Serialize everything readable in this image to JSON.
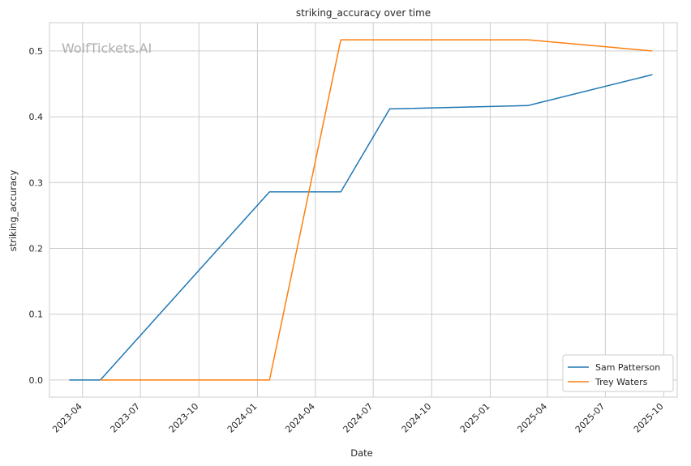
{
  "watermark": "WolfTickets.AI",
  "chart_data": {
    "type": "line",
    "title": "striking_accuracy over time",
    "xlabel": "Date",
    "ylabel": "striking_accuracy",
    "x_ticks": [
      "2023-04",
      "2023-07",
      "2023-10",
      "2024-01",
      "2024-04",
      "2024-07",
      "2024-10",
      "2025-01",
      "2025-04",
      "2025-07",
      "2025-10"
    ],
    "y_ticks": [
      0.0,
      0.1,
      0.2,
      0.3,
      0.4,
      0.5
    ],
    "xlim": [
      "2023-02-08",
      "2025-10-22"
    ],
    "ylim": [
      -0.026,
      0.543
    ],
    "grid": true,
    "legend_position": "bottom-right",
    "series": [
      {
        "name": "Sam Patterson",
        "color": "#1f77b4",
        "points": [
          {
            "x": "2023-03-11",
            "y": 0.0
          },
          {
            "x": "2023-04-29",
            "y": 0.0
          },
          {
            "x": "2024-01-20",
            "y": 0.286
          },
          {
            "x": "2024-05-11",
            "y": 0.286
          },
          {
            "x": "2024-07-27",
            "y": 0.412
          },
          {
            "x": "2025-03-01",
            "y": 0.417
          },
          {
            "x": "2025-09-13",
            "y": 0.464
          }
        ]
      },
      {
        "name": "Trey Waters",
        "color": "#ff7f0e",
        "points": [
          {
            "x": "2023-04-29",
            "y": 0.0
          },
          {
            "x": "2024-01-20",
            "y": 0.0
          },
          {
            "x": "2024-05-11",
            "y": 0.517
          },
          {
            "x": "2025-03-01",
            "y": 0.517
          },
          {
            "x": "2025-09-13",
            "y": 0.5
          }
        ]
      }
    ]
  }
}
